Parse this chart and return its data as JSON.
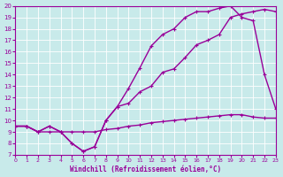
{
  "xlabel": "Windchill (Refroidissement éolien,°C)",
  "bg_color": "#c8eaea",
  "line_color": "#990099",
  "grid_color": "#ffffff",
  "xlim": [
    0,
    23
  ],
  "ylim": [
    7,
    20
  ],
  "xticks": [
    0,
    1,
    2,
    3,
    4,
    5,
    6,
    7,
    8,
    9,
    10,
    11,
    12,
    13,
    14,
    15,
    16,
    17,
    18,
    19,
    20,
    21,
    22,
    23
  ],
  "yticks": [
    7,
    8,
    9,
    10,
    11,
    12,
    13,
    14,
    15,
    16,
    17,
    18,
    19,
    20
  ],
  "series1_x": [
    0,
    1,
    2,
    3,
    4,
    5,
    6,
    7,
    8,
    9,
    10,
    11,
    12,
    13,
    14,
    15,
    16,
    17,
    18,
    19,
    20,
    21,
    22,
    23
  ],
  "series1_y": [
    9.5,
    9.5,
    9.0,
    9.0,
    9.0,
    9.0,
    9.0,
    9.0,
    9.2,
    9.3,
    9.5,
    9.6,
    9.8,
    9.9,
    10.0,
    10.1,
    10.2,
    10.3,
    10.4,
    10.5,
    10.5,
    10.3,
    10.2,
    10.2
  ],
  "series2_x": [
    0,
    1,
    2,
    3,
    4,
    5,
    6,
    7,
    8,
    9,
    10,
    11,
    12,
    13,
    14,
    15,
    16,
    17,
    18,
    19,
    20,
    21,
    22,
    23
  ],
  "series2_y": [
    9.5,
    9.5,
    9.0,
    9.5,
    9.0,
    8.0,
    7.3,
    7.7,
    10.0,
    11.2,
    11.5,
    12.5,
    13.0,
    14.2,
    14.5,
    15.5,
    16.6,
    17.0,
    17.5,
    19.0,
    19.3,
    19.5,
    19.7,
    19.5
  ],
  "series3_x": [
    0,
    1,
    2,
    3,
    4,
    5,
    6,
    7,
    8,
    9,
    10,
    11,
    12,
    13,
    14,
    15,
    16,
    17,
    18,
    19,
    20,
    21,
    22,
    23
  ],
  "series3_y": [
    9.5,
    9.5,
    9.0,
    9.5,
    9.0,
    8.0,
    7.3,
    7.7,
    10.0,
    11.2,
    12.8,
    14.6,
    16.5,
    17.5,
    18.0,
    19.0,
    19.5,
    19.5,
    19.8,
    20.0,
    19.0,
    18.7,
    14.0,
    11.0
  ]
}
